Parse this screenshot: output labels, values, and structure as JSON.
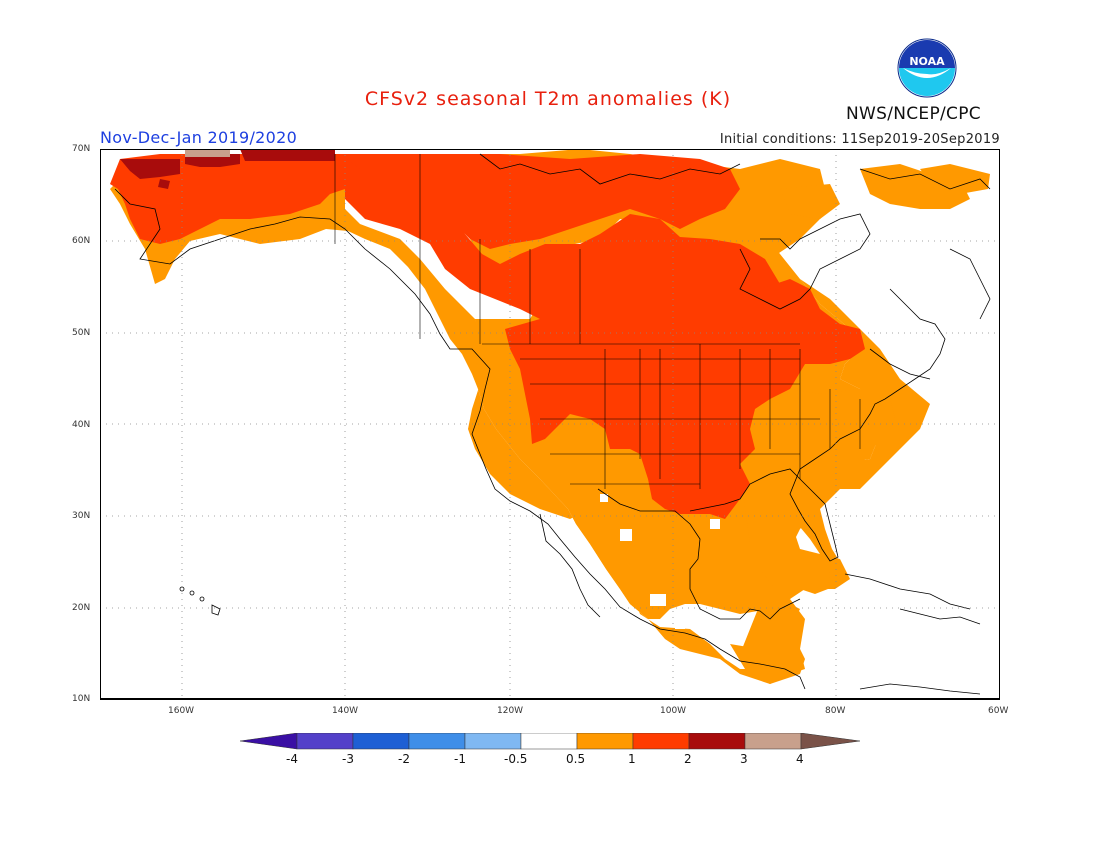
{
  "header": {
    "title": "CFSv2 seasonal T2m anomalies (K)",
    "period": "Nov-Dec-Jan 2019/2020",
    "initial_conditions": "Initial conditions: 11Sep2019-20Sep2019",
    "organization": "NWS/NCEP/CPC",
    "logo_text": "NOAA"
  },
  "map": {
    "region": "North America",
    "lon_range": [
      -170,
      -60
    ],
    "lat_range": [
      10,
      70
    ],
    "lon_labels": [
      "160W",
      "140W",
      "120W",
      "100W",
      "80W",
      "60W"
    ],
    "lat_labels": [
      "70N",
      "60N",
      "50N",
      "40N",
      "30N",
      "20N",
      "10N"
    ],
    "grid": "dotted"
  },
  "colorbar": {
    "labels": [
      "-4",
      "-3",
      "-2",
      "-1",
      "-0.5",
      "0.5",
      "1",
      "2",
      "3",
      "4"
    ],
    "colors": [
      "#3a0fa4",
      "#5340c9",
      "#1e5fd4",
      "#3f8ee8",
      "#7fb8f2",
      "#ffffff",
      "#ff9900",
      "#ff3c00",
      "#a80c0c",
      "#c8a08c",
      "#7a5248"
    ]
  },
  "colors": {
    "ge_0_5": "#ff9900",
    "ge_1": "#ff3c00",
    "ge_2": "#a80c0c",
    "ge_3": "#c8a08c"
  }
}
